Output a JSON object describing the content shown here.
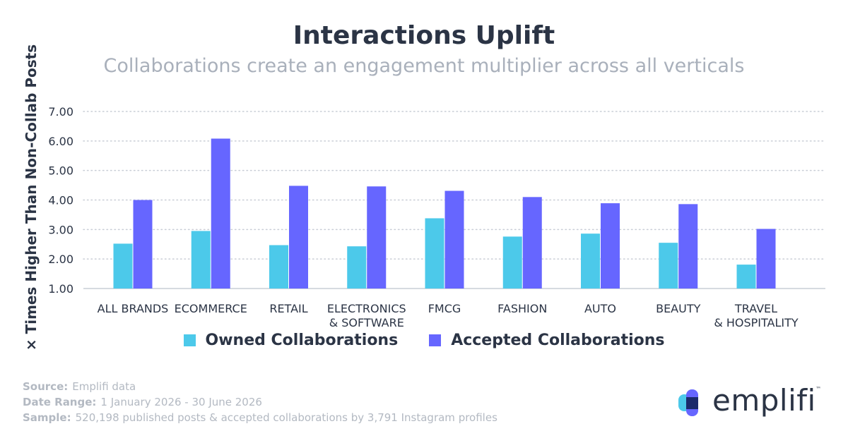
{
  "chart_data": {
    "type": "bar",
    "title": "Interactions Uplift",
    "subtitle": "Collaborations create an engagement multiplier across all verticals",
    "xlabel": "",
    "ylabel": "× Times Higher Than Non-Collab Posts",
    "ylim": [
      1.0,
      7.0
    ],
    "yticks": [
      "1.00",
      "2.00",
      "3.00",
      "4.00",
      "5.00",
      "6.00",
      "7.00"
    ],
    "grid": true,
    "legend_position": "bottom",
    "categories": [
      [
        "ALL BRANDS"
      ],
      [
        "ECOMMERCE"
      ],
      [
        "RETAIL"
      ],
      [
        "ELECTRONICS",
        "& SOFTWARE"
      ],
      [
        "FMCG"
      ],
      [
        "FASHION"
      ],
      [
        "AUTO"
      ],
      [
        "BEAUTY"
      ],
      [
        "TRAVEL",
        "& HOSPITALITY"
      ]
    ],
    "series": [
      {
        "name": "Owned Collaborations",
        "color": "#4cc9ea",
        "values": [
          2.52,
          2.95,
          2.47,
          2.43,
          3.38,
          2.76,
          2.86,
          2.55,
          1.81
        ]
      },
      {
        "name": "Accepted Collaborations",
        "color": "#6666ff",
        "values": [
          4.0,
          6.08,
          4.48,
          4.46,
          4.31,
          4.1,
          3.89,
          3.86,
          3.02
        ]
      }
    ]
  },
  "footer": {
    "source_label": "Source:",
    "source_value": "Emplifi data",
    "range_label": "Date Range:",
    "range_value": "1 January 2026 - 30 June 2026",
    "sample_label": "Sample:",
    "sample_value": "520,198 published posts & accepted collaborations by 3,791 Instagram profiles"
  },
  "logo": {
    "wordmark": "emplifi",
    "tm": "™",
    "colors": [
      "#4cc9ea",
      "#6666ff",
      "#1b2a6b"
    ]
  }
}
